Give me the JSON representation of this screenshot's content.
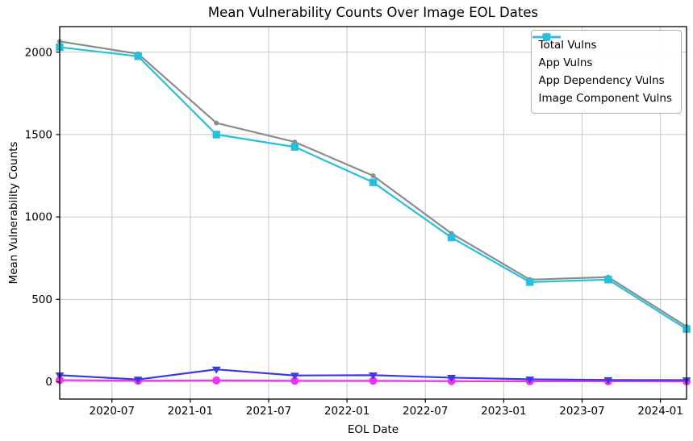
{
  "chart_data": {
    "type": "line",
    "title": "Mean Vulnerability Counts Over Image EOL Dates",
    "xlabel": "EOL Date",
    "ylabel": "Mean Vulnerability Counts",
    "x_dates": [
      "2020-03",
      "2020-09",
      "2021-03",
      "2021-09",
      "2022-03",
      "2022-09",
      "2023-03",
      "2023-09",
      "2024-03"
    ],
    "x_months": [
      2,
      8,
      14,
      20,
      26,
      32,
      38,
      44,
      50
    ],
    "series": [
      {
        "name": "Total Vulns",
        "color": "#8c8c8c",
        "marker": "circle-small",
        "values": [
          2065,
          1990,
          1570,
          1455,
          1250,
          900,
          620,
          635,
          335
        ]
      },
      {
        "name": "App Vulns",
        "color": "#f431f4",
        "marker": "circle",
        "values": [
          10,
          6,
          8,
          6,
          6,
          4,
          3,
          3,
          2
        ]
      },
      {
        "name": "App Dependency Vulns",
        "color": "#3939e5",
        "marker": "triangle-down",
        "values": [
          40,
          14,
          75,
          38,
          40,
          25,
          15,
          11,
          10
        ]
      },
      {
        "name": "Image Component Vulns",
        "color": "#22c2dc",
        "marker": "square",
        "values": [
          2030,
          1975,
          1500,
          1425,
          1210,
          875,
          605,
          620,
          320
        ]
      }
    ],
    "x_tick_labels": [
      "2020-07",
      "2021-01",
      "2021-07",
      "2022-01",
      "2022-07",
      "2023-01",
      "2023-07",
      "2024-01"
    ],
    "x_tick_months": [
      6,
      12,
      18,
      24,
      30,
      36,
      42,
      48
    ],
    "y_ticks": [
      0,
      500,
      1000,
      1500,
      2000
    ],
    "xlim_months": [
      2,
      50
    ],
    "ylim": [
      -105,
      2155
    ],
    "grid": true,
    "legend_position": "upper right"
  },
  "colors": {
    "background": "#ffffff",
    "grid": "#c9c9c9",
    "spine": "#000000",
    "legend_border": "#b0b0b0"
  }
}
